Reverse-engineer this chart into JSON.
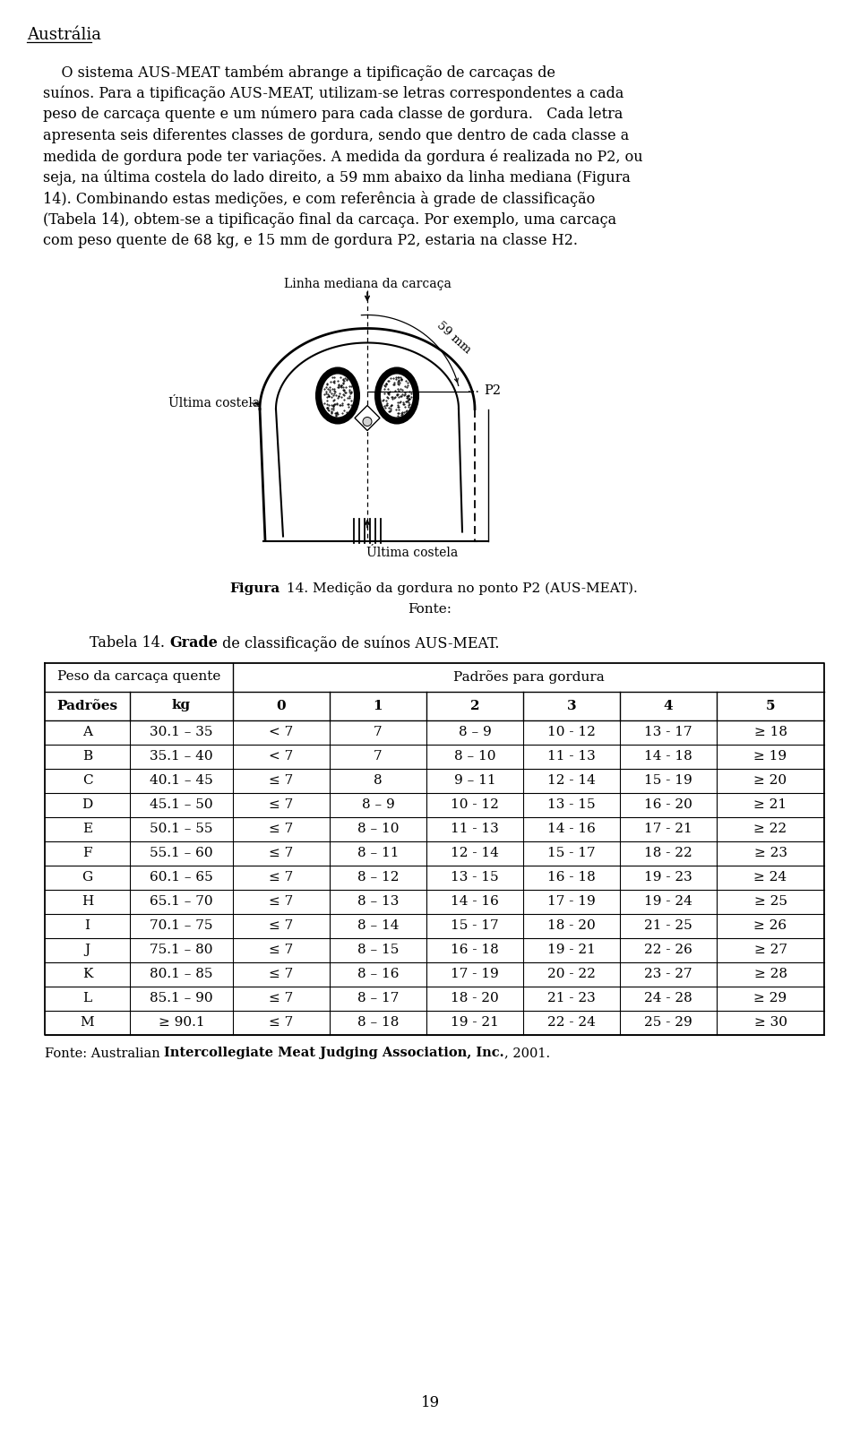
{
  "title": "Austrália",
  "para_lines": [
    "    O sistema AUS-MEAT também abrange a tipificação de carcaças de",
    "suínos. Para a tipificação AUS-MEAT, utilizam-se letras correspondentes a cada",
    "peso de carcaça quente e um número para cada classe de gordura.   Cada letra",
    "apresenta seis diferentes classes de gordura, sendo que dentro de cada classe a",
    "medida de gordura pode ter variações. A medida da gordura é realizada no P2, ou",
    "seja, na última costela do lado direito, a 59 mm abaixo da linha mediana (Figura",
    "14). Combinando estas medições, e com referência à grade de classificação",
    "(Tabela 14), obtem-se a tipificação final da carcaça. Por exemplo, uma carcaça",
    "com peso quente de 68 kg, e 15 mm de gordura P2, estaria na classe H2."
  ],
  "fig_caption_label": "Linha mediana da carcaça",
  "fig_ultima_costela_left": "Última costela",
  "fig_ultima_costela_bottom": "Última costela",
  "fig_59mm": "59 mm",
  "fig_p2": "P2",
  "fig_label_bold": "Figura",
  "fig_label_rest": "14. Medição da gordura no ponto P2 (AUS-MEAT).",
  "fig_source": "Fonte:",
  "table_title_pre": "Tabela 14. ",
  "table_title_bold": "Grade",
  "table_title_post": " de classificação de suínos AUS-MEAT.",
  "col_header1": "Peso da carcaça quente",
  "col_header2": "Padrões para gordura",
  "sub_col1": "Padrões",
  "sub_col2": "kg",
  "gordura_cols": [
    "0",
    "1",
    "2",
    "3",
    "4",
    "5"
  ],
  "rows": [
    [
      "A",
      "30.1 – 35",
      "< 7",
      "7",
      "8 – 9",
      "10 - 12",
      "13 - 17",
      "≥ 18"
    ],
    [
      "B",
      "35.1 – 40",
      "< 7",
      "7",
      "8 – 10",
      "11 - 13",
      "14 - 18",
      "≥ 19"
    ],
    [
      "C",
      "40.1 – 45",
      "≤ 7",
      "8",
      "9 – 11",
      "12 - 14",
      "15 - 19",
      "≥ 20"
    ],
    [
      "D",
      "45.1 – 50",
      "≤ 7",
      "8 – 9",
      "10 - 12",
      "13 - 15",
      "16 - 20",
      "≥ 21"
    ],
    [
      "E",
      "50.1 – 55",
      "≤ 7",
      "8 – 10",
      "11 - 13",
      "14 - 16",
      "17 - 21",
      "≥ 22"
    ],
    [
      "F",
      "55.1 – 60",
      "≤ 7",
      "8 – 11",
      "12 - 14",
      "15 - 17",
      "18 - 22",
      "≥ 23"
    ],
    [
      "G",
      "60.1 – 65",
      "≤ 7",
      "8 – 12",
      "13 - 15",
      "16 - 18",
      "19 - 23",
      "≥ 24"
    ],
    [
      "H",
      "65.1 – 70",
      "≤ 7",
      "8 – 13",
      "14 - 16",
      "17 - 19",
      "19 - 24",
      "≥ 25"
    ],
    [
      "I",
      "70.1 – 75",
      "≤ 7",
      "8 – 14",
      "15 - 17",
      "18 - 20",
      "21 - 25",
      "≥ 26"
    ],
    [
      "J",
      "75.1 – 80",
      "≤ 7",
      "8 – 15",
      "16 - 18",
      "19 - 21",
      "22 - 26",
      "≥ 27"
    ],
    [
      "K",
      "80.1 – 85",
      "≤ 7",
      "8 – 16",
      "17 - 19",
      "20 - 22",
      "23 - 27",
      "≥ 28"
    ],
    [
      "L",
      "85.1 – 90",
      "≤ 7",
      "8 – 17",
      "18 - 20",
      "21 - 23",
      "24 - 28",
      "≥ 29"
    ],
    [
      "M",
      "≥ 90.1",
      "≤ 7",
      "8 – 18",
      "19 - 21",
      "22 - 24",
      "25 - 29",
      "≥ 30"
    ]
  ],
  "fonte_pre": "Fonte: Australian ",
  "fonte_bold": "Intercollegiate Meat Judging Association, Inc.",
  "fonte_post": ", 2001.",
  "page_number": "19"
}
